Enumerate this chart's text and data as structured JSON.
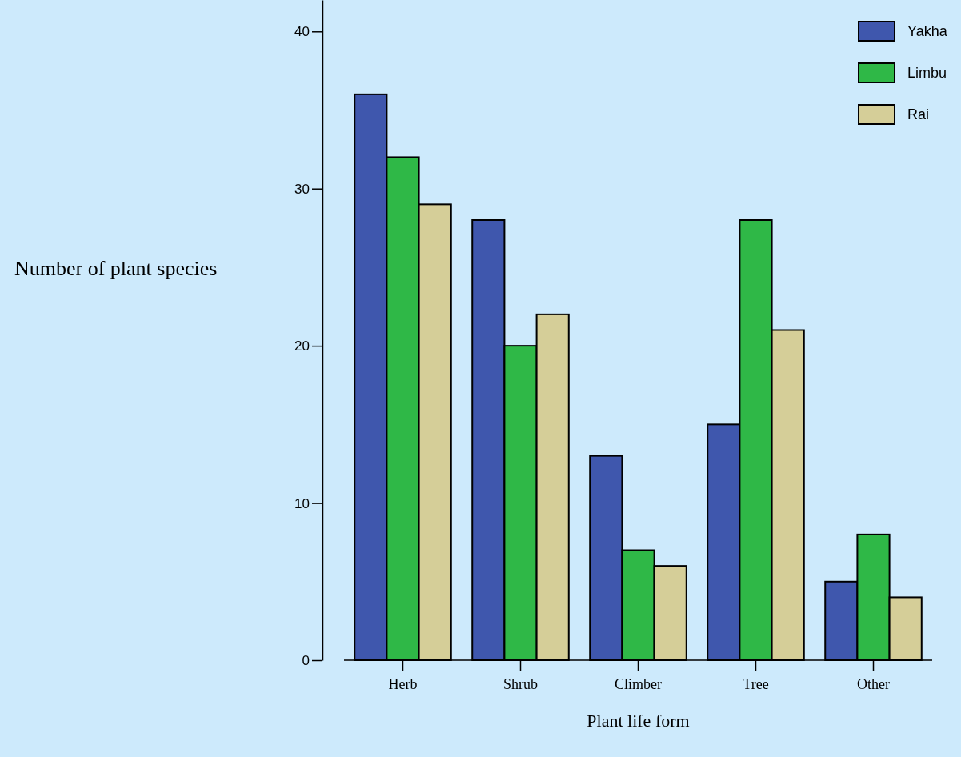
{
  "chart_data": {
    "type": "bar",
    "xlabel": "Plant life form",
    "ylabel": "Number of plant species",
    "categories": [
      "Herb",
      "Shrub",
      "Climber",
      "Tree",
      "Other"
    ],
    "series": [
      {
        "name": "Yakha",
        "color": "#3f57ad",
        "values": [
          36,
          28,
          13,
          15,
          5
        ]
      },
      {
        "name": "Limbu",
        "color": "#2fb847",
        "values": [
          32,
          20,
          7,
          28,
          8
        ]
      },
      {
        "name": "Rai",
        "color": "#d5ce98",
        "values": [
          29,
          22,
          6,
          21,
          4
        ]
      }
    ],
    "ylim": [
      0,
      42
    ],
    "yticks": [
      0,
      10,
      20,
      30,
      40
    ],
    "grid": false,
    "legend": "top right"
  }
}
